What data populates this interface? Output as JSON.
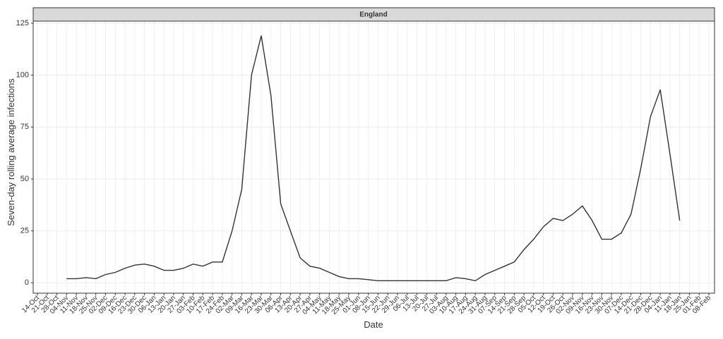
{
  "chart_data": {
    "type": "line",
    "strip_title": "England",
    "x_label": "Date",
    "y_label": "Seven-day rolling average infections",
    "categories": [
      "14-Oct",
      "21-Oct",
      "28-Oct",
      "04-Nov",
      "11-Nov",
      "18-Nov",
      "25-Nov",
      "02-Dec",
      "09-Dec",
      "16-Dec",
      "23-Dec",
      "30-Dec",
      "06-Jan",
      "13-Jan",
      "20-Jan",
      "27-Jan",
      "03-Feb",
      "10-Feb",
      "17-Feb",
      "24-Feb",
      "02-Mar",
      "09-Mar",
      "16-Mar",
      "23-Mar",
      "30-Mar",
      "06-Apr",
      "13-Apr",
      "20-Apr",
      "27-Apr",
      "04-May",
      "11-May",
      "18-May",
      "25-May",
      "01-Jun",
      "08-Jun",
      "15-Jun",
      "22-Jun",
      "29-Jun",
      "06-Jul",
      "13-Jul",
      "20-Jul",
      "27-Jul",
      "03-Aug",
      "10-Aug",
      "17-Aug",
      "24-Aug",
      "31-Aug",
      "07-Sep",
      "14-Sep",
      "21-Sep",
      "28-Sep",
      "05-Oct",
      "12-Oct",
      "19-Oct",
      "26-Oct",
      "02-Nov",
      "09-Nov",
      "16-Nov",
      "23-Nov",
      "30-Nov",
      "07-Dec",
      "14-Dec",
      "21-Dec",
      "28-Dec",
      "04-Jan",
      "11-Jan",
      "18-Jan",
      "25-Jan",
      "01-Feb",
      "08-Feb"
    ],
    "series": [
      {
        "color": "#333333",
        "values": [
          null,
          null,
          null,
          2,
          2,
          2.5,
          2,
          4,
          5,
          7,
          8.5,
          9,
          8,
          6,
          6,
          7,
          9,
          8,
          10,
          10,
          25,
          45,
          100,
          119,
          90,
          38,
          25,
          12,
          8,
          7,
          5,
          3,
          2,
          2,
          1.5,
          1,
          1,
          1,
          1,
          1,
          1,
          1,
          1,
          2.5,
          2,
          1,
          4,
          6,
          8,
          10,
          16,
          21,
          27,
          31,
          30,
          33,
          37,
          30,
          21,
          21,
          24,
          33,
          55,
          80,
          93,
          62,
          30,
          null,
          null,
          null
        ]
      }
    ],
    "ylim": [
      -5,
      126
    ],
    "yticks": [
      0,
      25,
      50,
      75,
      100,
      125
    ],
    "grid": true
  }
}
